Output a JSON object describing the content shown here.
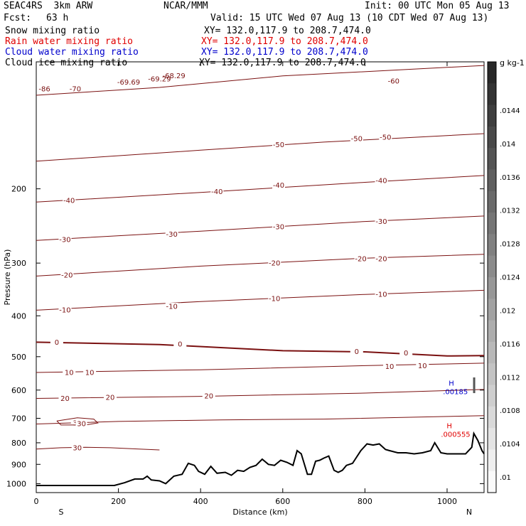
{
  "header": {
    "model": "SEAC4RS  3km ARW",
    "org": "NCAR/MMM",
    "init": "Init: 00 UTC Mon 05 Aug 13",
    "fcst_label": "Fcst:",
    "fcst_value": "63 h",
    "valid": "Valid: 15 UTC Wed 07 Aug 13 (10 CDT Wed 07 Aug 13)"
  },
  "fields": [
    {
      "label": "Snow mixing ratio",
      "xy": "XY= 132.0,117.9 to 208.7,474.0",
      "color": "#000000"
    },
    {
      "label": "Rain water mixing ratio",
      "xy": "XY= 132.0,117.9 to 208.7,474.0",
      "color": "#e00000"
    },
    {
      "label": "Cloud water mixing ratio",
      "xy": "XY= 132.0,117.9 to 208.7,474.0",
      "color": "#0000cc"
    },
    {
      "label": "Cloud ice mixing ratio",
      "xy": "XY= 132.0,117.9 to 208.7,474.0",
      "color": "#000000"
    }
  ],
  "colors": {
    "isotherm": "#7a1010",
    "freezing": "#7a1010",
    "terrain": "#000000",
    "max_cloud": "#0000cc",
    "max_rain": "#e00000"
  },
  "chart_data": {
    "type": "line",
    "xlabel": "Distance (km)",
    "ylabel": "Pressure (hPa)",
    "xlim": [
      0,
      1090
    ],
    "ylim": [
      1050,
      100
    ],
    "y_scale": "log",
    "xticks": [
      0,
      200,
      400,
      600,
      800,
      1000
    ],
    "yticks": [
      200,
      300,
      400,
      500,
      600,
      700,
      800,
      900,
      1000
    ],
    "x_end_labels": {
      "left": "S",
      "right": "N"
    },
    "isotherm_labels": [
      "-86",
      "-70",
      "-69.69",
      "-69.29",
      "-68.29",
      "-60",
      "-50",
      "-40",
      "-30",
      "-20",
      "-10",
      "0",
      "10",
      "20",
      "30"
    ],
    "isotherms": [
      {
        "value": -60,
        "pts": [
          [
            0,
            120
          ],
          [
            300,
            115
          ],
          [
            600,
            108
          ],
          [
            1090,
            102
          ]
        ],
        "labels": [
          [
            870,
            111
          ]
        ]
      },
      {
        "value": -50,
        "pts": [
          [
            0,
            172
          ],
          [
            400,
            162
          ],
          [
            700,
            155
          ],
          [
            1090,
            148
          ]
        ],
        "labels": [
          [
            590,
            157
          ],
          [
            780,
            152
          ],
          [
            850,
            151
          ]
        ]
      },
      {
        "value": -40,
        "pts": [
          [
            0,
            215
          ],
          [
            400,
            204
          ],
          [
            800,
            193
          ],
          [
            1090,
            186
          ]
        ],
        "labels": [
          [
            80,
            213
          ],
          [
            440,
            203
          ],
          [
            590,
            196
          ],
          [
            840,
            191
          ]
        ]
      },
      {
        "value": -30,
        "pts": [
          [
            0,
            265
          ],
          [
            400,
            252
          ],
          [
            800,
            239
          ],
          [
            1090,
            232
          ]
        ],
        "labels": [
          [
            70,
            264
          ],
          [
            330,
            256
          ],
          [
            590,
            246
          ],
          [
            840,
            239
          ]
        ]
      },
      {
        "value": -20,
        "pts": [
          [
            0,
            322
          ],
          [
            400,
            305
          ],
          [
            800,
            292
          ],
          [
            1090,
            286
          ]
        ],
        "labels": [
          [
            75,
            320
          ],
          [
            580,
            300
          ],
          [
            790,
            293
          ],
          [
            840,
            293
          ]
        ]
      },
      {
        "value": -10,
        "pts": [
          [
            0,
            388
          ],
          [
            400,
            370
          ],
          [
            800,
            356
          ],
          [
            1090,
            348
          ]
        ],
        "labels": [
          [
            70,
            387
          ],
          [
            330,
            380
          ],
          [
            580,
            364
          ],
          [
            840,
            356
          ]
        ]
      },
      {
        "value": 0,
        "pts": [
          [
            0,
            462
          ],
          [
            300,
            468
          ],
          [
            600,
            484
          ],
          [
            800,
            487
          ],
          [
            1000,
            498
          ],
          [
            1090,
            497
          ]
        ],
        "freezing": true,
        "labels": [
          [
            50,
            462
          ],
          [
            350,
            467
          ],
          [
            780,
            486
          ],
          [
            900,
            490
          ]
        ]
      },
      {
        "value": 10,
        "pts": [
          [
            0,
            545
          ],
          [
            400,
            537
          ],
          [
            800,
            525
          ],
          [
            1090,
            518
          ]
        ],
        "labels": [
          [
            80,
            545
          ],
          [
            130,
            545
          ],
          [
            860,
            527
          ],
          [
            940,
            525
          ]
        ]
      },
      {
        "value": 20,
        "pts": [
          [
            0,
            628
          ],
          [
            400,
            621
          ],
          [
            800,
            610
          ],
          [
            1090,
            598
          ]
        ],
        "labels": [
          [
            70,
            628
          ],
          [
            180,
            624
          ],
          [
            420,
            620
          ]
        ]
      },
      {
        "value": 30,
        "pts": [
          [
            0,
            722
          ],
          [
            200,
            712
          ],
          [
            450,
            706
          ],
          [
            700,
            703
          ],
          [
            1090,
            690
          ]
        ],
        "labels": [
          [
            100,
            718
          ]
        ]
      }
    ],
    "extra_contours": [
      {
        "value": 30,
        "pts": [
          [
            50,
            710
          ],
          [
            100,
            698
          ],
          [
            140,
            703
          ],
          [
            150,
            718
          ],
          [
            120,
            726
          ],
          [
            60,
            726
          ],
          [
            50,
            710
          ]
        ],
        "labels": [
          [
            110,
            720
          ]
        ]
      },
      {
        "value": 30,
        "pts": [
          [
            0,
            828
          ],
          [
            60,
            822
          ],
          [
            120,
            820
          ],
          [
            180,
            822
          ],
          [
            250,
            828
          ],
          [
            300,
            832
          ]
        ],
        "labels": [
          [
            100,
            822
          ]
        ]
      }
    ],
    "terrain": {
      "x": [
        0,
        190,
        215,
        240,
        260,
        270,
        280,
        300,
        315,
        335,
        355,
        370,
        385,
        395,
        410,
        425,
        440,
        460,
        475,
        490,
        505,
        520,
        535,
        550,
        565,
        580,
        595,
        610,
        625,
        635,
        645,
        660,
        670,
        680,
        690,
        700,
        712,
        725,
        735,
        745,
        755,
        770,
        790,
        805,
        820,
        835,
        850,
        860,
        880,
        900,
        920,
        940,
        960,
        970,
        985,
        1000,
        1020,
        1045,
        1060,
        1065,
        1075,
        1085,
        1090
      ],
      "p": [
        1010,
        1010,
        995,
        975,
        975,
        960,
        980,
        985,
        1000,
        960,
        950,
        895,
        905,
        935,
        950,
        910,
        945,
        940,
        955,
        930,
        935,
        915,
        905,
        875,
        900,
        905,
        880,
        890,
        905,
        835,
        850,
        950,
        950,
        885,
        880,
        870,
        860,
        930,
        940,
        930,
        905,
        895,
        835,
        805,
        810,
        805,
        830,
        835,
        845,
        845,
        850,
        845,
        835,
        800,
        845,
        850,
        850,
        850,
        820,
        760,
        790,
        835,
        850
      ]
    },
    "annotations": [
      {
        "text": "H",
        "value": ".00185",
        "x": 1035,
        "p": 590,
        "color_key": "max_cloud"
      },
      {
        "text": "H",
        "value": ".000555",
        "x": 1030,
        "p": 745,
        "color_key": "max_rain"
      }
    ],
    "colorbar": {
      "unit": "g kg-1",
      "labels": [
        ".0144",
        ".014",
        ".0136",
        ".0132",
        ".0128",
        ".0124",
        ".012",
        ".0116",
        ".0112",
        ".0108",
        ".0104",
        ".01"
      ]
    }
  }
}
